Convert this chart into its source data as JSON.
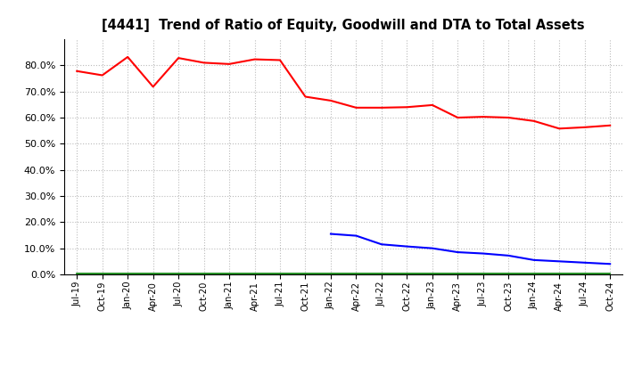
{
  "title": "[4441]  Trend of Ratio of Equity, Goodwill and DTA to Total Assets",
  "x_labels": [
    "Jul-19",
    "Oct-19",
    "Jan-20",
    "Apr-20",
    "Jul-20",
    "Oct-20",
    "Jan-21",
    "Apr-21",
    "Jul-21",
    "Oct-21",
    "Jan-22",
    "Apr-22",
    "Jul-22",
    "Oct-22",
    "Jan-23",
    "Apr-23",
    "Jul-23",
    "Oct-23",
    "Jan-24",
    "Apr-24",
    "Jul-24",
    "Oct-24"
  ],
  "equity": [
    0.778,
    0.762,
    0.832,
    0.718,
    0.828,
    0.81,
    0.805,
    0.823,
    0.82,
    0.68,
    0.665,
    0.638,
    0.638,
    0.64,
    0.648,
    0.6,
    0.603,
    0.6,
    0.587,
    0.558,
    0.563,
    0.57
  ],
  "goodwill": [
    null,
    null,
    null,
    null,
    null,
    null,
    null,
    null,
    null,
    null,
    0.155,
    0.148,
    0.115,
    0.107,
    0.1,
    0.085,
    0.08,
    0.072,
    0.055,
    0.05,
    0.045,
    0.04
  ],
  "dta": [
    0.003,
    0.003,
    0.003,
    0.003,
    0.003,
    0.003,
    0.003,
    0.003,
    0.003,
    0.003,
    0.003,
    0.003,
    0.003,
    0.003,
    0.003,
    0.003,
    0.003,
    0.003,
    0.003,
    0.003,
    0.003,
    0.003
  ],
  "equity_color": "#FF0000",
  "goodwill_color": "#0000FF",
  "dta_color": "#008000",
  "background_color": "#FFFFFF",
  "grid_color": "#BBBBBB",
  "ylim": [
    0.0,
    0.9
  ],
  "yticks": [
    0.0,
    0.1,
    0.2,
    0.3,
    0.4,
    0.5,
    0.6,
    0.7,
    0.8
  ]
}
